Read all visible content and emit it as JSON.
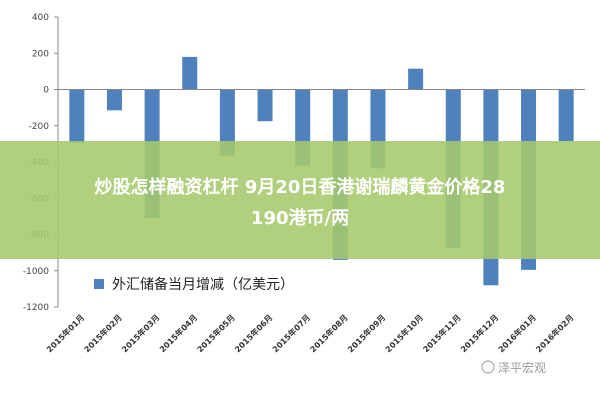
{
  "chart_data": {
    "type": "bar",
    "legend": "外汇储备当月增减（亿美元）",
    "categories": [
      "2015年01月",
      "2015年02月",
      "2015年03月",
      "2015年04月",
      "2015年05月",
      "2015年06月",
      "2015年07月",
      "2015年08月",
      "2015年09月",
      "2015年10月",
      "2015年11月",
      "2015年12月",
      "2016年01月",
      "2016年02月"
    ],
    "values": [
      -295,
      -115,
      -710,
      180,
      -365,
      -175,
      -420,
      -940,
      -435,
      115,
      -875,
      -1080,
      -995,
      -285
    ],
    "ylim": [
      -1200,
      400
    ],
    "yticks": [
      400,
      200,
      0,
      -200,
      -400,
      -600,
      -800,
      -1000,
      -1200
    ],
    "bar_color": "#4f81bd",
    "grid": false
  },
  "banner": {
    "line1": "炒股怎样融资杠杆 9月20日香港谢瑞麟黄金价格28",
    "line2": "190港币/两",
    "color": "#a5c96b"
  },
  "watermark": "泽平宏观"
}
